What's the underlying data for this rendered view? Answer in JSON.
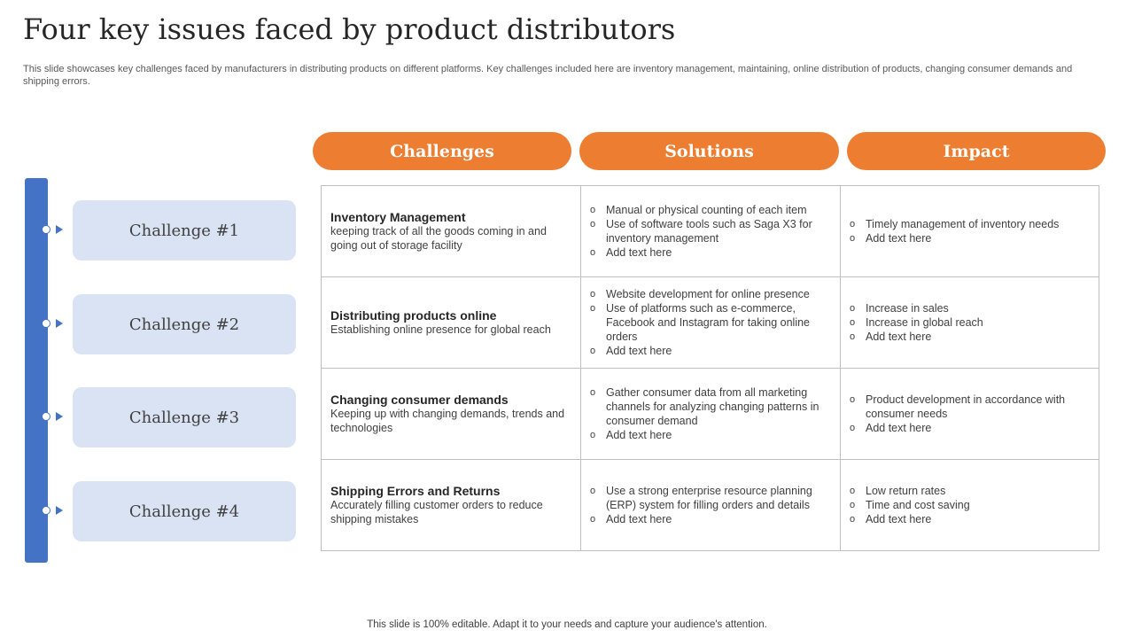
{
  "title": "Four key issues faced by product distributors",
  "subtitle": "This slide showcases key challenges faced by manufacturers in distributing products on different platforms. Key challenges included here are inventory management, maintaining, online distribution of products, changing consumer demands and shipping errors.",
  "headers": [
    "Challenges",
    "Solutions",
    "Impact"
  ],
  "chips": [
    "Challenge #1",
    "Challenge #2",
    "Challenge #3",
    "Challenge #4"
  ],
  "rows": [
    {
      "title": "Inventory Management",
      "desc": "keeping track of all the goods coming in and going out of storage facility",
      "solutions": [
        "Manual or physical counting of each item",
        "Use of software tools such as Saga X3 for inventory management",
        "Add text here"
      ],
      "impact": [
        "Timely management of inventory needs",
        "Add text here"
      ]
    },
    {
      "title": "Distributing products online",
      "desc": "Establishing online presence for global reach",
      "solutions": [
        "Website development for online presence",
        "Use of platforms such as e-commerce, Facebook and Instagram for taking online orders",
        "Add text here"
      ],
      "impact": [
        "Increase in sales",
        "Increase in global reach",
        "Add text here"
      ]
    },
    {
      "title": "Changing consumer demands",
      "desc": "Keeping up with changing demands, trends and technologies",
      "solutions": [
        "Gather consumer data from all marketing channels for analyzing changing patterns in consumer demand",
        "Add text here"
      ],
      "impact": [
        "Product development in accordance with consumer needs",
        "Add text here"
      ]
    },
    {
      "title": "Shipping Errors and Returns",
      "desc": "Accurately filling customer orders to reduce shipping mistakes",
      "solutions": [
        "Use a strong enterprise resource planning (ERP) system for filling orders and details",
        "Add text here"
      ],
      "impact": [
        "Low return rates",
        "Time and cost saving",
        "Add text here"
      ]
    }
  ],
  "footer": "This slide is 100% editable. Adapt it to your needs and capture your audience's attention.",
  "colors": {
    "accent_orange": "#ed7d31",
    "accent_blue": "#4472c4",
    "chip_bg": "#dae3f3"
  }
}
